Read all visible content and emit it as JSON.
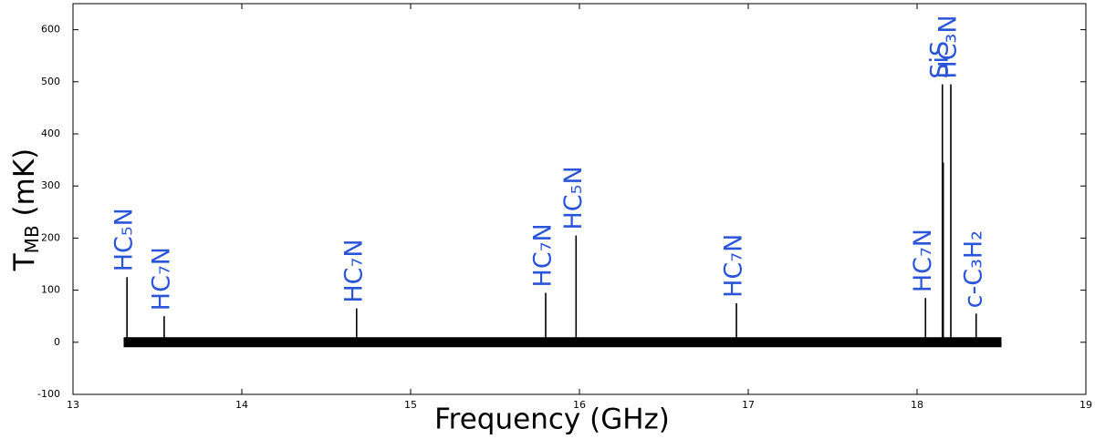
{
  "chart_data": {
    "type": "spectrum",
    "xlabel": "Frequency (GHz)",
    "ylabel": {
      "main": "T",
      "sub": "MB",
      "rest": " (mK)"
    },
    "xlim": [
      13,
      19
    ],
    "xticks": [
      13,
      14,
      15,
      16,
      17,
      18,
      19
    ],
    "ylim": [
      -100,
      650
    ],
    "yticks": [
      -100,
      0,
      100,
      200,
      300,
      400,
      500,
      600
    ],
    "color": "#000000",
    "label_color": "#2a55d8",
    "baseline": {
      "x": [
        13.3,
        18.5
      ],
      "values": [
        0,
        0
      ]
    },
    "peaks": {
      "x": [
        13.32,
        13.54,
        14.68,
        15.8,
        15.98,
        16.93,
        18.05,
        18.15,
        18.155,
        18.2,
        18.35
      ],
      "values": [
        125,
        50,
        65,
        95,
        205,
        75,
        85,
        495,
        345,
        495,
        55
      ],
      "labels": [
        "HC₅N",
        "HC₇N",
        "HC₇N",
        "HC₇N",
        "HC₅N",
        "HC₇N",
        "HC₇N",
        "SiS",
        null,
        "HC₃N",
        "c-C₃H₂"
      ]
    }
  }
}
